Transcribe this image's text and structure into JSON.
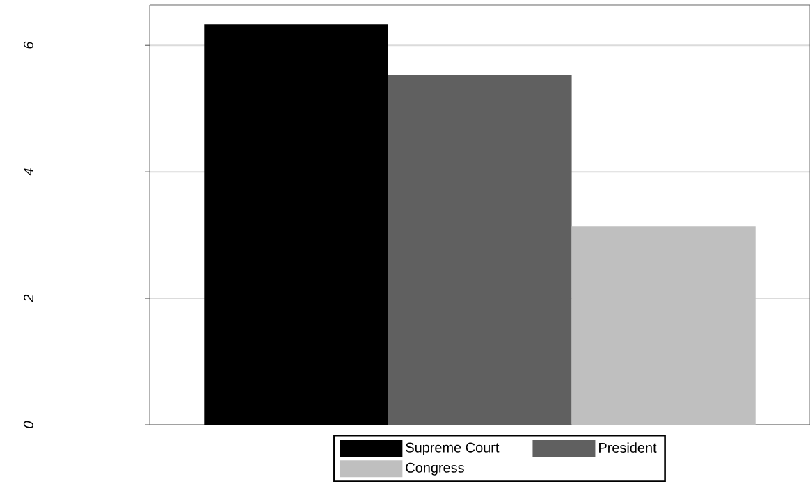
{
  "chart_data": {
    "type": "bar",
    "categories": [
      null
    ],
    "series": [
      {
        "name": "Supreme Court",
        "color": "#000000",
        "values": [
          6.33
        ]
      },
      {
        "name": "President",
        "color": "#606060",
        "values": [
          5.53
        ]
      },
      {
        "name": "Congress",
        "color": "#bfbfbf",
        "values": [
          3.14
        ]
      }
    ],
    "ylim": [
      0,
      6.64
    ],
    "yticks": [
      0,
      2,
      4,
      6
    ],
    "grid": "y",
    "legend": "bottom",
    "tick_labels": "y"
  }
}
